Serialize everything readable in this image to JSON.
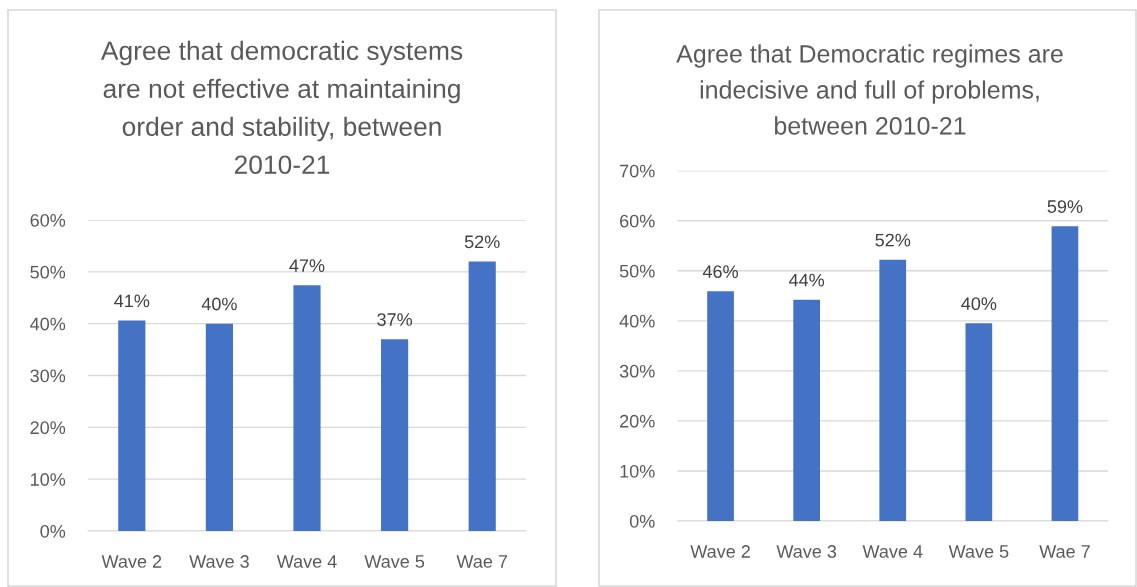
{
  "chart_data": [
    {
      "type": "bar",
      "title": "Agree that democratic systems\nare not effective at maintaining\norder and stability, between\n2010-21",
      "categories": [
        "Wave 2",
        "Wave 3",
        "Wave 4",
        "Wave 5",
        "Wae 7"
      ],
      "values": [
        40.6,
        40.0,
        47.4,
        37.0,
        52.0
      ],
      "value_labels": [
        "41%",
        "40%",
        "47%",
        "37%",
        "52%"
      ],
      "color": "#4472c4",
      "ylim": [
        0,
        60
      ],
      "yticks": [
        {
          "value": 0,
          "label": "0%"
        },
        {
          "value": 10,
          "label": "10%"
        },
        {
          "value": 20,
          "label": "20%"
        },
        {
          "value": 30,
          "label": "30%"
        },
        {
          "value": 40,
          "label": "40%"
        },
        {
          "value": 50,
          "label": "50%"
        },
        {
          "value": 60,
          "label": "60%"
        }
      ],
      "grid": "y"
    },
    {
      "type": "bar",
      "title": "Agree that Democratic regimes are\nindecisive and full of problems,\nbetween 2010-21",
      "categories": [
        "Wave 2",
        "Wave 3",
        "Wave 4",
        "Wave 5",
        "Wae 7"
      ],
      "values": [
        45.9,
        44.2,
        52.2,
        39.5,
        58.9
      ],
      "value_labels": [
        "46%",
        "44%",
        "52%",
        "40%",
        "59%"
      ],
      "color": "#4472c4",
      "ylim": [
        0,
        70
      ],
      "yticks": [
        {
          "value": 0,
          "label": "0%"
        },
        {
          "value": 10,
          "label": "10%"
        },
        {
          "value": 20,
          "label": "20%"
        },
        {
          "value": 30,
          "label": "30%"
        },
        {
          "value": 40,
          "label": "40%"
        },
        {
          "value": 50,
          "label": "50%"
        },
        {
          "value": 60,
          "label": "60%"
        },
        {
          "value": 70,
          "label": "70%"
        }
      ],
      "grid": "y"
    }
  ]
}
